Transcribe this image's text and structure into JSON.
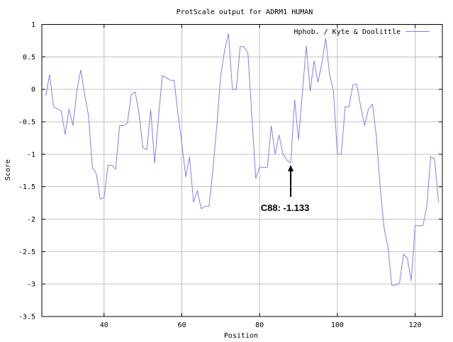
{
  "chart_data": {
    "type": "line",
    "title": "ProtScale output for ADRM1 HUMAN",
    "xlabel": "Position",
    "ylabel": "Score",
    "xlim": [
      24,
      127
    ],
    "ylim": [
      -3.5,
      1
    ],
    "xticks": [
      40,
      60,
      80,
      100,
      120
    ],
    "yticks": [
      1,
      0.5,
      0,
      -0.5,
      -1,
      -1.5,
      -2,
      -2.5,
      -3,
      -3.5
    ],
    "grid": true,
    "legend_position": "top-right",
    "colors": {
      "series": "#8080f0",
      "grid": "#c0c0c0",
      "axis": "#000000"
    },
    "series": [
      {
        "name": "Hphob. / Kyte & Doolittle",
        "x": [
          25,
          26,
          27,
          28,
          29,
          30,
          31,
          32,
          33,
          34,
          35,
          36,
          37,
          38,
          39,
          40,
          41,
          42,
          43,
          44,
          45,
          46,
          47,
          48,
          49,
          50,
          51,
          52,
          53,
          54,
          55,
          56,
          57,
          58,
          59,
          60,
          61,
          62,
          63,
          64,
          65,
          66,
          67,
          68,
          69,
          70,
          71,
          72,
          73,
          74,
          75,
          76,
          77,
          78,
          79,
          80,
          81,
          82,
          83,
          84,
          85,
          86,
          87,
          88,
          89,
          90,
          91,
          92,
          93,
          94,
          95,
          96,
          97,
          98,
          99,
          100,
          101,
          102,
          103,
          104,
          105,
          106,
          107,
          108,
          109,
          110,
          111,
          112,
          113,
          114,
          115,
          116,
          117,
          118,
          119,
          120,
          121,
          122,
          123,
          124,
          125,
          126
        ],
        "values": [
          -0.1,
          0.23,
          -0.27,
          -0.3,
          -0.33,
          -0.7,
          -0.3,
          -0.56,
          -0.02,
          0.3,
          -0.07,
          -0.4,
          -1.2,
          -1.3,
          -1.69,
          -1.67,
          -1.17,
          -1.17,
          -1.23,
          -0.56,
          -0.56,
          -0.52,
          -0.08,
          -0.04,
          -0.37,
          -0.9,
          -0.93,
          -0.31,
          -1.14,
          -0.43,
          0.21,
          0.18,
          0.14,
          0.14,
          -0.37,
          -0.83,
          -1.35,
          -1.04,
          -1.74,
          -1.56,
          -1.84,
          -1.8,
          -1.8,
          -1.23,
          -0.56,
          0.21,
          0.6,
          0.86,
          0.0,
          0.0,
          0.66,
          0.66,
          0.56,
          -0.4,
          -1.37,
          -1.2,
          -1.2,
          -1.2,
          -0.56,
          -1.0,
          -0.7,
          -1.0,
          -1.09,
          -1.133,
          -0.16,
          -0.78,
          -0.06,
          0.67,
          -0.03,
          0.44,
          0.11,
          0.4,
          0.79,
          0.23,
          -0.03,
          -1.0,
          -1.0,
          -0.27,
          -0.27,
          0.07,
          0.08,
          -0.27,
          -0.56,
          -0.3,
          -0.23,
          -0.7,
          -1.5,
          -2.13,
          -2.43,
          -3.02,
          -3.02,
          -2.98,
          -2.54,
          -2.6,
          -2.95,
          -2.1,
          -2.1,
          -2.1,
          -1.8,
          -1.04,
          -1.07,
          -1.74
        ]
      }
    ],
    "annotations": [
      {
        "text": "C88: -1.133",
        "x": 88,
        "y": -1.133
      }
    ]
  }
}
